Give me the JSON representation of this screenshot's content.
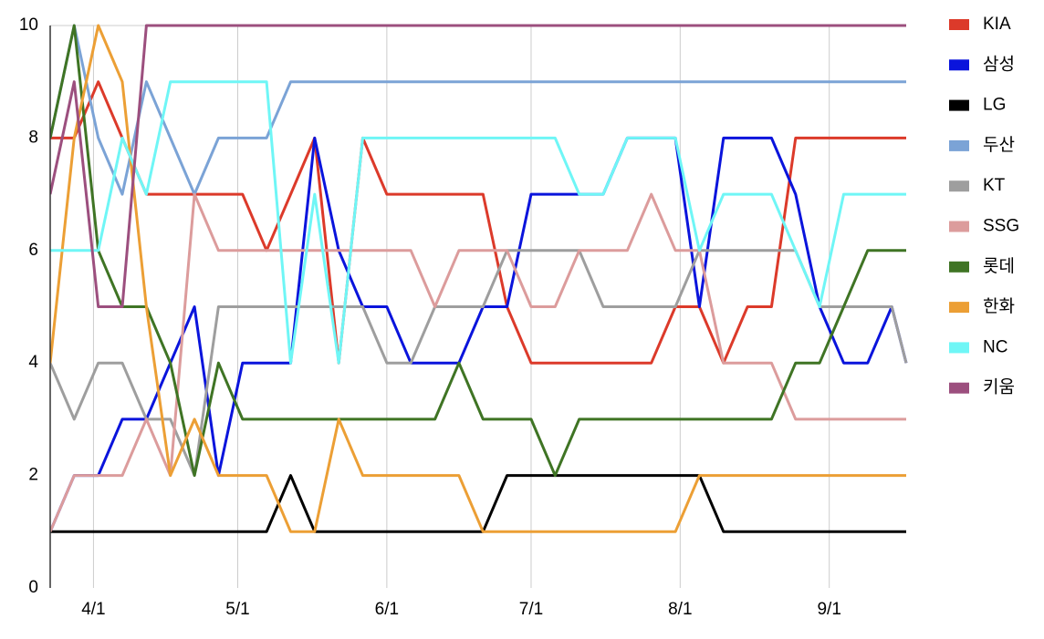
{
  "chart_data": {
    "type": "line",
    "x": [
      "3/23",
      "3/28",
      "4/2",
      "4/7",
      "4/12",
      "4/17",
      "4/22",
      "4/27",
      "5/2",
      "5/7",
      "5/12",
      "5/17",
      "5/22",
      "5/27",
      "6/1",
      "6/6",
      "6/11",
      "6/16",
      "6/21",
      "6/26",
      "7/1",
      "7/6",
      "7/11",
      "7/16",
      "7/21",
      "7/26",
      "7/31",
      "8/5",
      "8/10",
      "8/15",
      "8/20",
      "8/25",
      "8/30",
      "9/4",
      "9/9",
      "9/14",
      "9/17"
    ],
    "xlim": [
      "3/23",
      "9/17"
    ],
    "xticks": [
      "4/1",
      "5/1",
      "6/1",
      "7/1",
      "8/1",
      "9/1"
    ],
    "ylim": [
      0,
      10
    ],
    "yticks": [
      0,
      2,
      4,
      6,
      8,
      10
    ],
    "grid": "x",
    "legend": "right",
    "series": [
      {
        "name": "KIA",
        "color": "#dc3a2a",
        "values": [
          8,
          8,
          9,
          8,
          7,
          7,
          7,
          7,
          7,
          6,
          7,
          8,
          4,
          8,
          7,
          7,
          7,
          7,
          7,
          5,
          4,
          4,
          4,
          4,
          4,
          4,
          5,
          5,
          4,
          5,
          5,
          8,
          8,
          8,
          8,
          8,
          8
        ]
      },
      {
        "name": "삼성",
        "color": "#0a14dc",
        "values": [
          1,
          2,
          2,
          3,
          3,
          4,
          5,
          2,
          4,
          4,
          4,
          8,
          6,
          5,
          5,
          4,
          4,
          4,
          5,
          5,
          7,
          7,
          7,
          7,
          8,
          8,
          8,
          5,
          8,
          8,
          8,
          7,
          5,
          4,
          4,
          5,
          4
        ]
      },
      {
        "name": "LG",
        "color": "#000000",
        "values": [
          1,
          1,
          1,
          1,
          1,
          1,
          1,
          1,
          1,
          1,
          2,
          1,
          1,
          1,
          1,
          1,
          1,
          1,
          1,
          2,
          2,
          2,
          2,
          2,
          2,
          2,
          2,
          2,
          1,
          1,
          1,
          1,
          1,
          1,
          1,
          1,
          1
        ]
      },
      {
        "name": "두산",
        "color": "#7ba3d6",
        "values": [
          8,
          10,
          8,
          7,
          9,
          8,
          7,
          8,
          8,
          8,
          9,
          9,
          9,
          9,
          9,
          9,
          9,
          9,
          9,
          9,
          9,
          9,
          9,
          9,
          9,
          9,
          9,
          9,
          9,
          9,
          9,
          9,
          9,
          9,
          9,
          9,
          9
        ]
      },
      {
        "name": "KT",
        "color": "#9e9e9e",
        "values": [
          4,
          3,
          4,
          4,
          3,
          3,
          2,
          5,
          5,
          5,
          5,
          5,
          5,
          5,
          4,
          4,
          5,
          5,
          5,
          6,
          6,
          6,
          6,
          5,
          5,
          5,
          5,
          6,
          6,
          6,
          6,
          6,
          5,
          5,
          5,
          5,
          4
        ]
      },
      {
        "name": "SSG",
        "color": "#dc9c9c",
        "values": [
          1,
          2,
          2,
          2,
          3,
          2,
          7,
          6,
          6,
          6,
          6,
          6,
          6,
          6,
          6,
          6,
          5,
          6,
          6,
          6,
          5,
          5,
          6,
          6,
          6,
          7,
          6,
          6,
          4,
          4,
          4,
          3,
          3,
          3,
          3,
          3,
          3
        ]
      },
      {
        "name": "롯데",
        "color": "#3f7424",
        "values": [
          8,
          10,
          6,
          5,
          5,
          4,
          2,
          4,
          3,
          3,
          3,
          3,
          3,
          3,
          3,
          3,
          3,
          4,
          3,
          3,
          3,
          2,
          3,
          3,
          3,
          3,
          3,
          3,
          3,
          3,
          3,
          4,
          4,
          5,
          6,
          6,
          6
        ]
      },
      {
        "name": "한화",
        "color": "#ec9f35",
        "values": [
          4,
          8,
          10,
          9,
          5,
          2,
          3,
          2,
          2,
          2,
          1,
          1,
          3,
          2,
          2,
          2,
          2,
          2,
          1,
          1,
          1,
          1,
          1,
          1,
          1,
          1,
          1,
          2,
          2,
          2,
          2,
          2,
          2,
          2,
          2,
          2,
          2
        ]
      },
      {
        "name": "NC",
        "color": "#6ff6f6",
        "values": [
          6,
          6,
          6,
          8,
          7,
          9,
          9,
          9,
          9,
          9,
          4,
          7,
          4,
          8,
          8,
          8,
          8,
          8,
          8,
          8,
          8,
          8,
          7,
          7,
          8,
          8,
          8,
          6,
          7,
          7,
          7,
          6,
          5,
          7,
          7,
          7,
          7
        ]
      },
      {
        "name": "키움",
        "color": "#9c4f7e",
        "values": [
          7,
          9,
          5,
          5,
          10,
          10,
          10,
          10,
          10,
          10,
          10,
          10,
          10,
          10,
          10,
          10,
          10,
          10,
          10,
          10,
          10,
          10,
          10,
          10,
          10,
          10,
          10,
          10,
          10,
          10,
          10,
          10,
          10,
          10,
          10,
          10,
          10
        ]
      }
    ]
  }
}
